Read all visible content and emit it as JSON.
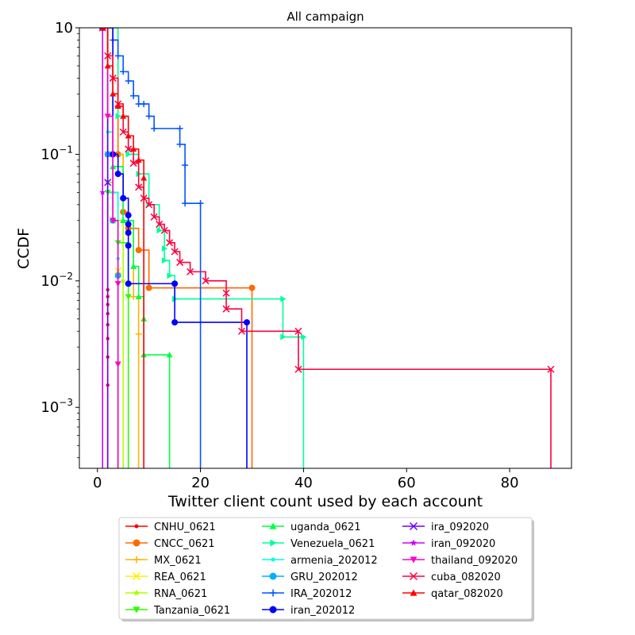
{
  "chart_data": {
    "type": "line",
    "title": "All campaign",
    "xlabel": "Twitter client count used by each account",
    "ylabel": "CCDF",
    "x_ticks": [
      0,
      20,
      40,
      60,
      80
    ],
    "y_ticks": [
      {
        "value": 0.001,
        "base": "10",
        "exp": "−3"
      },
      {
        "value": 0.01,
        "base": "10",
        "exp": "−2"
      },
      {
        "value": 0.1,
        "base": "10",
        "exp": "−1"
      },
      {
        "value": 1,
        "label": "10"
      }
    ],
    "xlim": [
      -3.5,
      92
    ],
    "ylim": [
      0.00033,
      1
    ],
    "y_scale": "log",
    "grid": false,
    "legend_placement": "below plot, 3 columns",
    "series": [
      {
        "name": "CNHU_0621",
        "color": "#ff0000",
        "marker": "dot",
        "points": [
          [
            1,
            1
          ],
          [
            2,
            0.0085
          ],
          [
            2,
            0.0075
          ],
          [
            2,
            0.0065
          ],
          [
            2,
            0.0055
          ],
          [
            2,
            0.0045
          ],
          [
            2,
            0.0035
          ],
          [
            2,
            0.0025
          ],
          [
            2,
            0.0015
          ],
          [
            2,
            0.00033
          ]
        ]
      },
      {
        "name": "CNCC_0621",
        "color": "#ff6a00",
        "marker": "circle",
        "points": [
          [
            1,
            1
          ],
          [
            4,
            0.1
          ],
          [
            5,
            0.035
          ],
          [
            6,
            0.026
          ],
          [
            8,
            0.0175
          ],
          [
            10,
            0.0088
          ],
          [
            30,
            0.0088
          ],
          [
            30,
            0.00033
          ]
        ]
      },
      {
        "name": "MX_0621",
        "color": "#ffb300",
        "marker": "plus",
        "points": [
          [
            1,
            1
          ],
          [
            3,
            0.1
          ],
          [
            5,
            0.03
          ],
          [
            7,
            0.0075
          ],
          [
            8,
            0.0038
          ],
          [
            8,
            0.00033
          ]
        ]
      },
      {
        "name": "REA_0621",
        "color": "#ffee00",
        "marker": "x",
        "points": [
          [
            1,
            1
          ],
          [
            2,
            0.1
          ],
          [
            3,
            0.03
          ],
          [
            4,
            0.012
          ],
          [
            4,
            0.00033
          ]
        ]
      },
      {
        "name": "RNA_0621",
        "color": "#a8ff00",
        "marker": "star",
        "points": [
          [
            1,
            1
          ],
          [
            2,
            0.06
          ],
          [
            3,
            0.03
          ],
          [
            5,
            0.01
          ],
          [
            5,
            0.00033
          ]
        ]
      },
      {
        "name": "Tanzania_0621",
        "color": "#28ff00",
        "marker": "tri-down",
        "points": [
          [
            1,
            1
          ],
          [
            2,
            0.05
          ],
          [
            4,
            0.02
          ],
          [
            6,
            0.0075
          ],
          [
            6,
            0.00033
          ]
        ]
      },
      {
        "name": "uganda_0621",
        "color": "#00ff44",
        "marker": "tri-up",
        "points": [
          [
            1,
            1
          ],
          [
            3,
            0.08
          ],
          [
            5,
            0.03
          ],
          [
            7,
            0.013
          ],
          [
            8,
            0.0075
          ],
          [
            9,
            0.005
          ],
          [
            9,
            0.0026
          ],
          [
            14,
            0.0026
          ],
          [
            14,
            0.00033
          ]
        ]
      },
      {
        "name": "Venezuela_0621",
        "color": "#00ff99",
        "marker": "tri-right",
        "points": [
          [
            1,
            1
          ],
          [
            4,
            0.2
          ],
          [
            6,
            0.1
          ],
          [
            8,
            0.07
          ],
          [
            10,
            0.04
          ],
          [
            12,
            0.025
          ],
          [
            13,
            0.018
          ],
          [
            13,
            0.0145
          ],
          [
            14,
            0.011
          ],
          [
            15,
            0.0072
          ],
          [
            36,
            0.0072
          ],
          [
            36,
            0.0036
          ],
          [
            40,
            0.0036
          ],
          [
            40,
            0.00033
          ]
        ]
      },
      {
        "name": "armenia_202012",
        "color": "#00ffe0",
        "marker": "dot",
        "points": [
          [
            1,
            1
          ],
          [
            2,
            0.15
          ],
          [
            3,
            0.05
          ],
          [
            4,
            0.015
          ],
          [
            4,
            0.00033
          ]
        ]
      },
      {
        "name": "GRU_202012",
        "color": "#00b0ff",
        "marker": "circle",
        "points": [
          [
            1,
            1
          ],
          [
            2,
            0.1
          ],
          [
            3,
            0.03
          ],
          [
            4,
            0.011
          ],
          [
            4,
            0.00033
          ]
        ]
      },
      {
        "name": "IRA_202012",
        "color": "#0055ff",
        "marker": "plus",
        "points": [
          [
            1,
            1
          ],
          [
            3,
            0.8
          ],
          [
            4,
            0.6
          ],
          [
            5,
            0.45
          ],
          [
            6,
            0.38
          ],
          [
            7,
            0.29
          ],
          [
            8,
            0.25
          ],
          [
            9,
            0.25
          ],
          [
            10,
            0.2
          ],
          [
            11,
            0.16
          ],
          [
            16,
            0.16
          ],
          [
            16,
            0.12
          ],
          [
            17,
            0.082
          ],
          [
            17,
            0.041
          ],
          [
            20,
            0.041
          ],
          [
            20,
            0.00033
          ]
        ]
      },
      {
        "name": "iran_202012",
        "color": "#0000ff",
        "marker": "circle",
        "points": [
          [
            1,
            1
          ],
          [
            3,
            0.1
          ],
          [
            4,
            0.07
          ],
          [
            5,
            0.045
          ],
          [
            6,
            0.033
          ],
          [
            6,
            0.028
          ],
          [
            6,
            0.024
          ],
          [
            6,
            0.019
          ],
          [
            6,
            0.0095
          ],
          [
            15,
            0.0095
          ],
          [
            15,
            0.0047
          ],
          [
            29,
            0.0047
          ],
          [
            29,
            0.00033
          ]
        ]
      },
      {
        "name": "ira_092020",
        "color": "#6a00ff",
        "marker": "x",
        "points": [
          [
            1,
            1
          ],
          [
            2,
            0.06
          ],
          [
            2,
            0.00033
          ]
        ]
      },
      {
        "name": "iran_092020",
        "color": "#cc00ff",
        "marker": "star",
        "points": [
          [
            1,
            1
          ],
          [
            1,
            0.05
          ],
          [
            1,
            0.00033
          ]
        ]
      },
      {
        "name": "thailand_092020",
        "color": "#ff00cc",
        "marker": "tri-down",
        "points": [
          [
            1,
            1
          ],
          [
            2,
            0.2
          ],
          [
            3,
            0.03
          ],
          [
            4,
            0.0095
          ],
          [
            4,
            0.0022
          ],
          [
            4,
            0.00033
          ]
        ]
      },
      {
        "name": "cuba_082020",
        "color": "#ff0040",
        "marker": "x",
        "points": [
          [
            1,
            1
          ],
          [
            2,
            0.6
          ],
          [
            3,
            0.4
          ],
          [
            4,
            0.25
          ],
          [
            5,
            0.15
          ],
          [
            6,
            0.11
          ],
          [
            7,
            0.085
          ],
          [
            8,
            0.055
          ],
          [
            9,
            0.045
          ],
          [
            10,
            0.04
          ],
          [
            11,
            0.032
          ],
          [
            12,
            0.028
          ],
          [
            13,
            0.025
          ],
          [
            14,
            0.02
          ],
          [
            15,
            0.017
          ],
          [
            16,
            0.014
          ],
          [
            18,
            0.0118
          ],
          [
            21,
            0.01
          ],
          [
            25,
            0.008
          ],
          [
            25,
            0.006
          ],
          [
            28,
            0.004
          ],
          [
            39,
            0.004
          ],
          [
            39,
            0.002
          ],
          [
            88,
            0.002
          ],
          [
            88,
            0.00033
          ]
        ]
      },
      {
        "name": "qatar_082020",
        "color": "#ff0000",
        "marker": "tri-up",
        "points": [
          [
            1,
            1
          ],
          [
            2,
            0.5
          ],
          [
            3,
            0.3
          ],
          [
            4,
            0.24
          ],
          [
            5,
            0.2
          ],
          [
            6,
            0.14
          ],
          [
            7,
            0.11
          ],
          [
            8,
            0.09
          ],
          [
            9,
            0.065
          ],
          [
            9,
            0.00033
          ]
        ]
      }
    ]
  }
}
